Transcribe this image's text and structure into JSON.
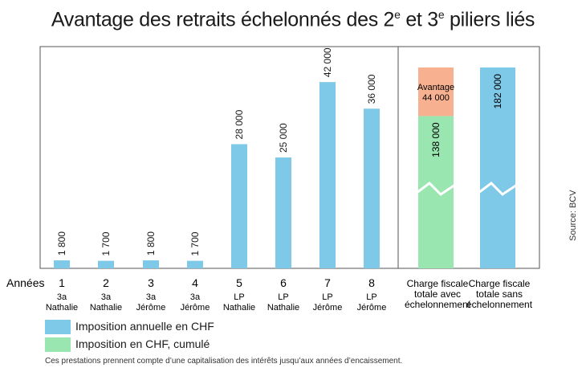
{
  "title": {
    "prefix": "Avantage des retraits échelonnés des 2",
    "sup1": "e",
    "middle": " et 3",
    "sup2": "e",
    "suffix": " piliers liés"
  },
  "row_label": "Années",
  "source": "Source: BCV",
  "footnote": "Ces prestations prennent compte d’une capitalisation des intérêts jusqu’aux années d’encaissement.",
  "legend": [
    {
      "label": "Imposition annuelle en CHF",
      "color": "#7ec8e8"
    },
    {
      "label": "Imposition en CHF, cumulé",
      "color": "#99e6b0"
    }
  ],
  "colors": {
    "annual": "#7ec8e8",
    "cumulative": "#99e6b0",
    "advantage": "#f7b191"
  },
  "chart_data": {
    "type": "bar",
    "categories": [
      {
        "year": "1",
        "line1": "3a",
        "line2": "Nathalie"
      },
      {
        "year": "2",
        "line1": "3a",
        "line2": "Nathalie"
      },
      {
        "year": "3",
        "line1": "3a",
        "line2": "Jérôme"
      },
      {
        "year": "4",
        "line1": "3a",
        "line2": "Jérôme"
      },
      {
        "year": "5",
        "line1": "LP",
        "line2": "Nathalie"
      },
      {
        "year": "6",
        "line1": "LP",
        "line2": "Nathalie"
      },
      {
        "year": "7",
        "line1": "LP",
        "line2": "Jérôme"
      },
      {
        "year": "8",
        "line1": "LP",
        "line2": "Jérôme"
      }
    ],
    "values": [
      1800,
      1700,
      1800,
      1700,
      28000,
      25000,
      42000,
      36000
    ],
    "value_labels": [
      "1 800",
      "1 700",
      "1 800",
      "1 700",
      "28 000",
      "25 000",
      "42 000",
      "36 000"
    ],
    "ylim": [
      0,
      50000
    ],
    "totals": [
      {
        "lines": [
          "Charge fiscale",
          "totale avec",
          "échelonnement"
        ],
        "value": 138000,
        "value_label": "138 000",
        "advantage": 44000,
        "advantage_lines": [
          "Avantage",
          "44 000"
        ]
      },
      {
        "lines": [
          "Charge fiscale",
          "totale sans",
          "échelonnement"
        ],
        "value": 182000,
        "value_label": "182 000"
      }
    ]
  }
}
